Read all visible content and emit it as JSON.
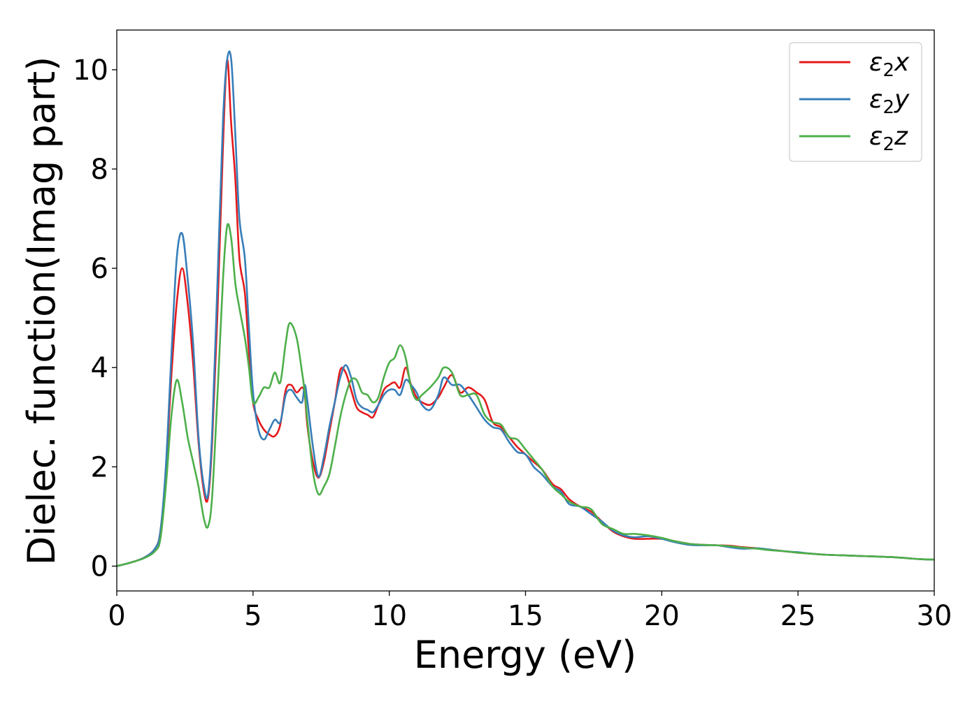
{
  "chart_data": {
    "type": "line",
    "xlabel": "Energy (eV)",
    "ylabel": "Dielec. function(Imag part)",
    "xlim": [
      0,
      30
    ],
    "ylim": [
      -0.5,
      10.8
    ],
    "xticks": [
      0,
      5,
      10,
      15,
      20,
      25,
      30
    ],
    "yticks": [
      0,
      2,
      4,
      6,
      8,
      10
    ],
    "grid": false,
    "legend_position": "top-right",
    "series": [
      {
        "name": "ε2x",
        "label_base": "ε",
        "label_sub": "2",
        "label_suffix": "x",
        "color": "#e41a1c",
        "x": [
          0,
          0.5,
          1.0,
          1.4,
          1.6,
          1.8,
          2.0,
          2.2,
          2.4,
          2.6,
          2.8,
          3.0,
          3.2,
          3.35,
          3.5,
          3.7,
          3.9,
          4.05,
          4.2,
          4.35,
          4.5,
          4.7,
          4.85,
          5.0,
          5.2,
          5.4,
          5.6,
          5.8,
          6.0,
          6.2,
          6.4,
          6.6,
          6.8,
          6.9,
          7.0,
          7.2,
          7.4,
          7.6,
          7.8,
          8.0,
          8.2,
          8.4,
          8.6,
          8.8,
          9.0,
          9.2,
          9.4,
          9.6,
          9.8,
          10.0,
          10.2,
          10.4,
          10.6,
          10.8,
          11.0,
          11.2,
          11.5,
          11.8,
          12.0,
          12.3,
          12.6,
          12.9,
          13.2,
          13.5,
          13.8,
          14.1,
          14.4,
          14.7,
          15.0,
          15.3,
          15.6,
          16.0,
          16.3,
          16.6,
          17.0,
          17.4,
          17.8,
          18.2,
          18.6,
          19.0,
          19.5,
          20.0,
          20.5,
          21.0,
          21.5,
          22.0,
          22.5,
          23.0,
          23.5,
          24.0,
          24.5,
          25.0,
          25.5,
          26.0,
          26.5,
          27.0,
          27.5,
          28.0,
          28.5,
          29.0,
          29.5,
          30.0
        ],
        "y": [
          0,
          0.07,
          0.17,
          0.35,
          0.7,
          1.9,
          3.8,
          5.3,
          6.0,
          5.3,
          4.1,
          2.5,
          1.5,
          1.38,
          2.5,
          5.2,
          8.5,
          10.2,
          8.9,
          7.8,
          6.2,
          5.5,
          4.3,
          3.3,
          2.95,
          2.75,
          2.65,
          2.62,
          2.85,
          3.55,
          3.65,
          3.5,
          3.6,
          3.45,
          2.8,
          2.1,
          1.78,
          2.1,
          2.7,
          3.3,
          3.95,
          3.9,
          3.55,
          3.2,
          3.1,
          3.05,
          3.0,
          3.25,
          3.55,
          3.65,
          3.7,
          3.6,
          4.0,
          3.65,
          3.4,
          3.3,
          3.25,
          3.4,
          3.6,
          3.85,
          3.5,
          3.6,
          3.5,
          3.35,
          2.9,
          2.8,
          2.6,
          2.4,
          2.25,
          2.1,
          1.95,
          1.65,
          1.55,
          1.35,
          1.2,
          1.1,
          0.9,
          0.7,
          0.6,
          0.55,
          0.55,
          0.55,
          0.5,
          0.45,
          0.43,
          0.42,
          0.41,
          0.38,
          0.36,
          0.33,
          0.3,
          0.27,
          0.25,
          0.23,
          0.22,
          0.21,
          0.2,
          0.19,
          0.18,
          0.16,
          0.14,
          0.13
        ]
      },
      {
        "name": "ε2y",
        "label_base": "ε",
        "label_sub": "2",
        "label_suffix": "y",
        "color": "#377eb8",
        "x": [
          0,
          0.5,
          1.0,
          1.4,
          1.6,
          1.8,
          2.0,
          2.2,
          2.4,
          2.6,
          2.8,
          3.0,
          3.2,
          3.35,
          3.5,
          3.7,
          3.9,
          4.05,
          4.2,
          4.35,
          4.5,
          4.7,
          4.85,
          5.0,
          5.2,
          5.4,
          5.6,
          5.8,
          6.0,
          6.2,
          6.4,
          6.6,
          6.8,
          6.9,
          7.0,
          7.2,
          7.4,
          7.6,
          7.8,
          8.0,
          8.2,
          8.4,
          8.6,
          8.8,
          9.0,
          9.2,
          9.4,
          9.6,
          9.8,
          10.0,
          10.2,
          10.4,
          10.6,
          10.8,
          11.0,
          11.2,
          11.5,
          11.8,
          12.0,
          12.3,
          12.6,
          12.9,
          13.2,
          13.5,
          13.8,
          14.1,
          14.4,
          14.7,
          15.0,
          15.3,
          15.6,
          16.0,
          16.3,
          16.6,
          17.0,
          17.4,
          17.8,
          18.2,
          18.6,
          19.0,
          19.5,
          20.0,
          20.5,
          21.0,
          21.5,
          22.0,
          22.5,
          23.0,
          23.5,
          24.0,
          24.5,
          25.0,
          25.5,
          26.0,
          26.5,
          27.0,
          27.5,
          28.0,
          28.5,
          29.0,
          29.5,
          30.0
        ],
        "y": [
          0,
          0.07,
          0.17,
          0.35,
          0.7,
          2.0,
          4.2,
          6.2,
          6.7,
          5.8,
          4.5,
          2.6,
          1.6,
          1.45,
          2.7,
          5.8,
          9.0,
          10.2,
          10.2,
          8.7,
          7.0,
          6.2,
          4.8,
          3.5,
          2.75,
          2.55,
          2.75,
          2.95,
          2.9,
          3.45,
          3.55,
          3.4,
          3.3,
          3.65,
          3.3,
          2.4,
          1.8,
          2.2,
          2.8,
          3.3,
          3.8,
          4.05,
          3.8,
          3.35,
          3.2,
          3.15,
          3.1,
          3.25,
          3.45,
          3.55,
          3.55,
          3.45,
          3.75,
          3.65,
          3.5,
          3.25,
          3.15,
          3.45,
          3.8,
          3.65,
          3.65,
          3.45,
          3.2,
          2.95,
          2.8,
          2.75,
          2.5,
          2.3,
          2.25,
          2.0,
          1.85,
          1.6,
          1.5,
          1.25,
          1.2,
          1.05,
          0.9,
          0.72,
          0.62,
          0.58,
          0.6,
          0.55,
          0.48,
          0.43,
          0.42,
          0.42,
          0.38,
          0.35,
          0.36,
          0.33,
          0.3,
          0.28,
          0.25,
          0.23,
          0.22,
          0.21,
          0.2,
          0.19,
          0.18,
          0.16,
          0.14,
          0.13
        ]
      },
      {
        "name": "ε2z",
        "label_base": "ε",
        "label_sub": "2",
        "label_suffix": "z",
        "color": "#4daf4a",
        "x": [
          0,
          0.5,
          1.0,
          1.4,
          1.6,
          1.8,
          2.0,
          2.2,
          2.4,
          2.6,
          2.8,
          3.0,
          3.2,
          3.35,
          3.5,
          3.7,
          3.9,
          4.05,
          4.2,
          4.35,
          4.5,
          4.7,
          4.85,
          5.0,
          5.2,
          5.4,
          5.6,
          5.8,
          6.0,
          6.2,
          6.35,
          6.6,
          6.8,
          6.9,
          7.0,
          7.2,
          7.4,
          7.6,
          7.8,
          8.0,
          8.2,
          8.4,
          8.6,
          8.8,
          9.0,
          9.2,
          9.4,
          9.6,
          9.8,
          10.0,
          10.2,
          10.4,
          10.6,
          10.8,
          11.0,
          11.2,
          11.5,
          11.8,
          12.0,
          12.3,
          12.6,
          12.9,
          13.2,
          13.5,
          13.8,
          14.1,
          14.4,
          14.7,
          15.0,
          15.3,
          15.6,
          16.0,
          16.3,
          16.6,
          17.0,
          17.4,
          17.8,
          18.2,
          18.6,
          19.0,
          19.5,
          20.0,
          20.5,
          21.0,
          21.5,
          22.0,
          22.5,
          23.0,
          23.5,
          24.0,
          24.5,
          25.0,
          25.5,
          26.0,
          26.5,
          27.0,
          27.5,
          28.0,
          28.5,
          29.0,
          29.5,
          30.0
        ],
        "y": [
          0,
          0.07,
          0.16,
          0.3,
          0.55,
          1.6,
          3.0,
          3.75,
          3.3,
          2.6,
          2.1,
          1.6,
          0.95,
          0.8,
          1.4,
          3.5,
          5.8,
          6.85,
          6.6,
          5.7,
          5.2,
          4.6,
          4.0,
          3.3,
          3.4,
          3.6,
          3.6,
          3.9,
          3.7,
          4.5,
          4.9,
          4.6,
          3.9,
          3.5,
          2.9,
          1.9,
          1.45,
          1.6,
          1.85,
          2.4,
          3.0,
          3.45,
          3.75,
          3.75,
          3.5,
          3.45,
          3.3,
          3.4,
          3.8,
          4.1,
          4.2,
          4.45,
          4.2,
          3.6,
          3.35,
          3.45,
          3.6,
          3.8,
          4.0,
          3.9,
          3.45,
          3.45,
          3.45,
          3.05,
          2.9,
          2.85,
          2.6,
          2.55,
          2.35,
          2.15,
          1.95,
          1.6,
          1.45,
          1.3,
          1.2,
          1.15,
          0.85,
          0.75,
          0.65,
          0.65,
          0.62,
          0.57,
          0.5,
          0.45,
          0.43,
          0.42,
          0.4,
          0.37,
          0.35,
          0.32,
          0.3,
          0.27,
          0.25,
          0.23,
          0.22,
          0.21,
          0.2,
          0.19,
          0.18,
          0.16,
          0.14,
          0.13
        ]
      }
    ]
  }
}
